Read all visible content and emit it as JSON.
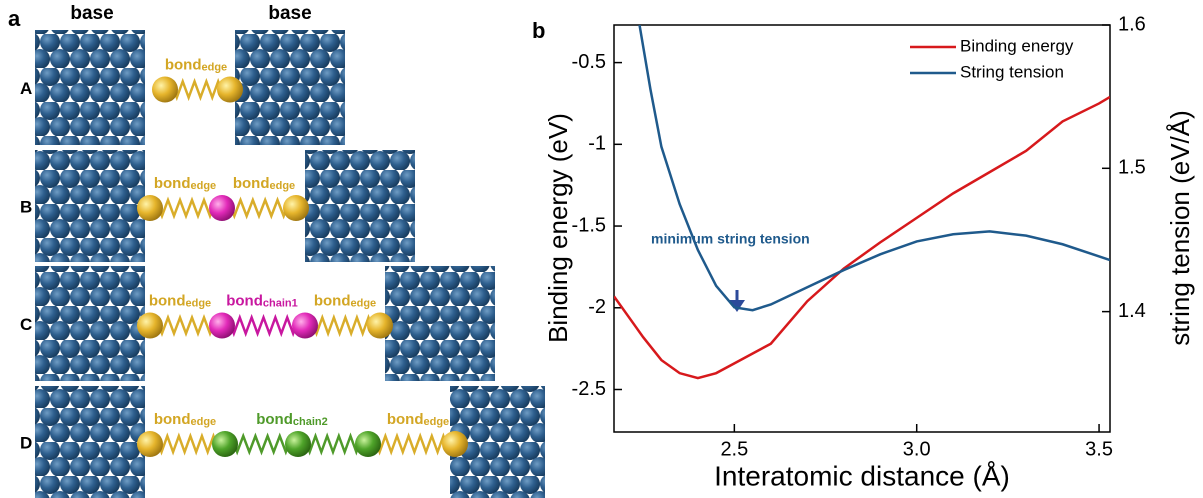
{
  "panel_a": {
    "label": "a",
    "base_labels": [
      "base",
      "base"
    ],
    "rows": [
      {
        "label": "A",
        "bonds": [
          {
            "main": "bond",
            "sub": "edge"
          }
        ]
      },
      {
        "label": "B",
        "bonds": [
          {
            "main": "bond",
            "sub": "edge"
          },
          {
            "main": "bond",
            "sub": "edge"
          }
        ]
      },
      {
        "label": "C",
        "bonds": [
          {
            "main": "bond",
            "sub": "edge"
          },
          {
            "main": "bond",
            "sub": "chain1"
          },
          {
            "main": "bond",
            "sub": "edge"
          }
        ]
      },
      {
        "label": "D",
        "bonds": [
          {
            "main": "bond",
            "sub": "edge"
          },
          {
            "main": "bond",
            "sub": "chain2"
          },
          {
            "main": "bond",
            "sub": "edge"
          }
        ]
      }
    ]
  },
  "chart_data": {
    "type": "line",
    "panel_label": "b",
    "x_label": "Interatomic distance (Å)",
    "y_label": "Binding energy (eV)",
    "y2_label": "string tension (eV/Å)",
    "annotation": "minimum string tension",
    "xlim": [
      2.17,
      3.53
    ],
    "xticks": [
      2.5,
      {
        "value": 3,
        "label": "3.0"
      },
      3.5
    ],
    "ylim": [
      -2.76,
      -0.27
    ],
    "yticks": [
      -0.5,
      -1.0,
      -1.5,
      -2.0,
      -2.5
    ],
    "y2lim": [
      1.316,
      1.6
    ],
    "y2ticks": [
      1.4,
      1.5,
      1.6
    ],
    "legend": "upper right",
    "series": [
      {
        "name": "Binding energy",
        "color": "#d7191c",
        "x": [
          2.17,
          2.25,
          2.3,
          2.35,
          2.4,
          2.45,
          2.5,
          2.6,
          2.7,
          2.8,
          2.9,
          3.0,
          3.1,
          3.2,
          3.3,
          3.4,
          3.5,
          3.53
        ],
        "values": [
          -1.93,
          -2.18,
          -2.32,
          -2.4,
          -2.43,
          -2.4,
          -2.34,
          -2.22,
          -1.96,
          -1.76,
          -1.6,
          -1.45,
          -1.3,
          -1.17,
          -1.04,
          -0.86,
          -0.75,
          -0.71
        ]
      },
      {
        "name": "String tension",
        "color": "#1f5a8c",
        "axis": "y2",
        "x": [
          2.24,
          2.27,
          2.3,
          2.35,
          2.4,
          2.45,
          2.5,
          2.55,
          2.6,
          2.7,
          2.8,
          2.9,
          3.0,
          3.1,
          3.2,
          3.3,
          3.4,
          3.53
        ],
        "values": [
          1.6,
          1.555,
          1.515,
          1.475,
          1.443,
          1.418,
          1.403,
          1.401,
          1.405,
          1.417,
          1.429,
          1.44,
          1.449,
          1.454,
          1.456,
          1.453,
          1.447,
          1.436
        ]
      }
    ]
  }
}
